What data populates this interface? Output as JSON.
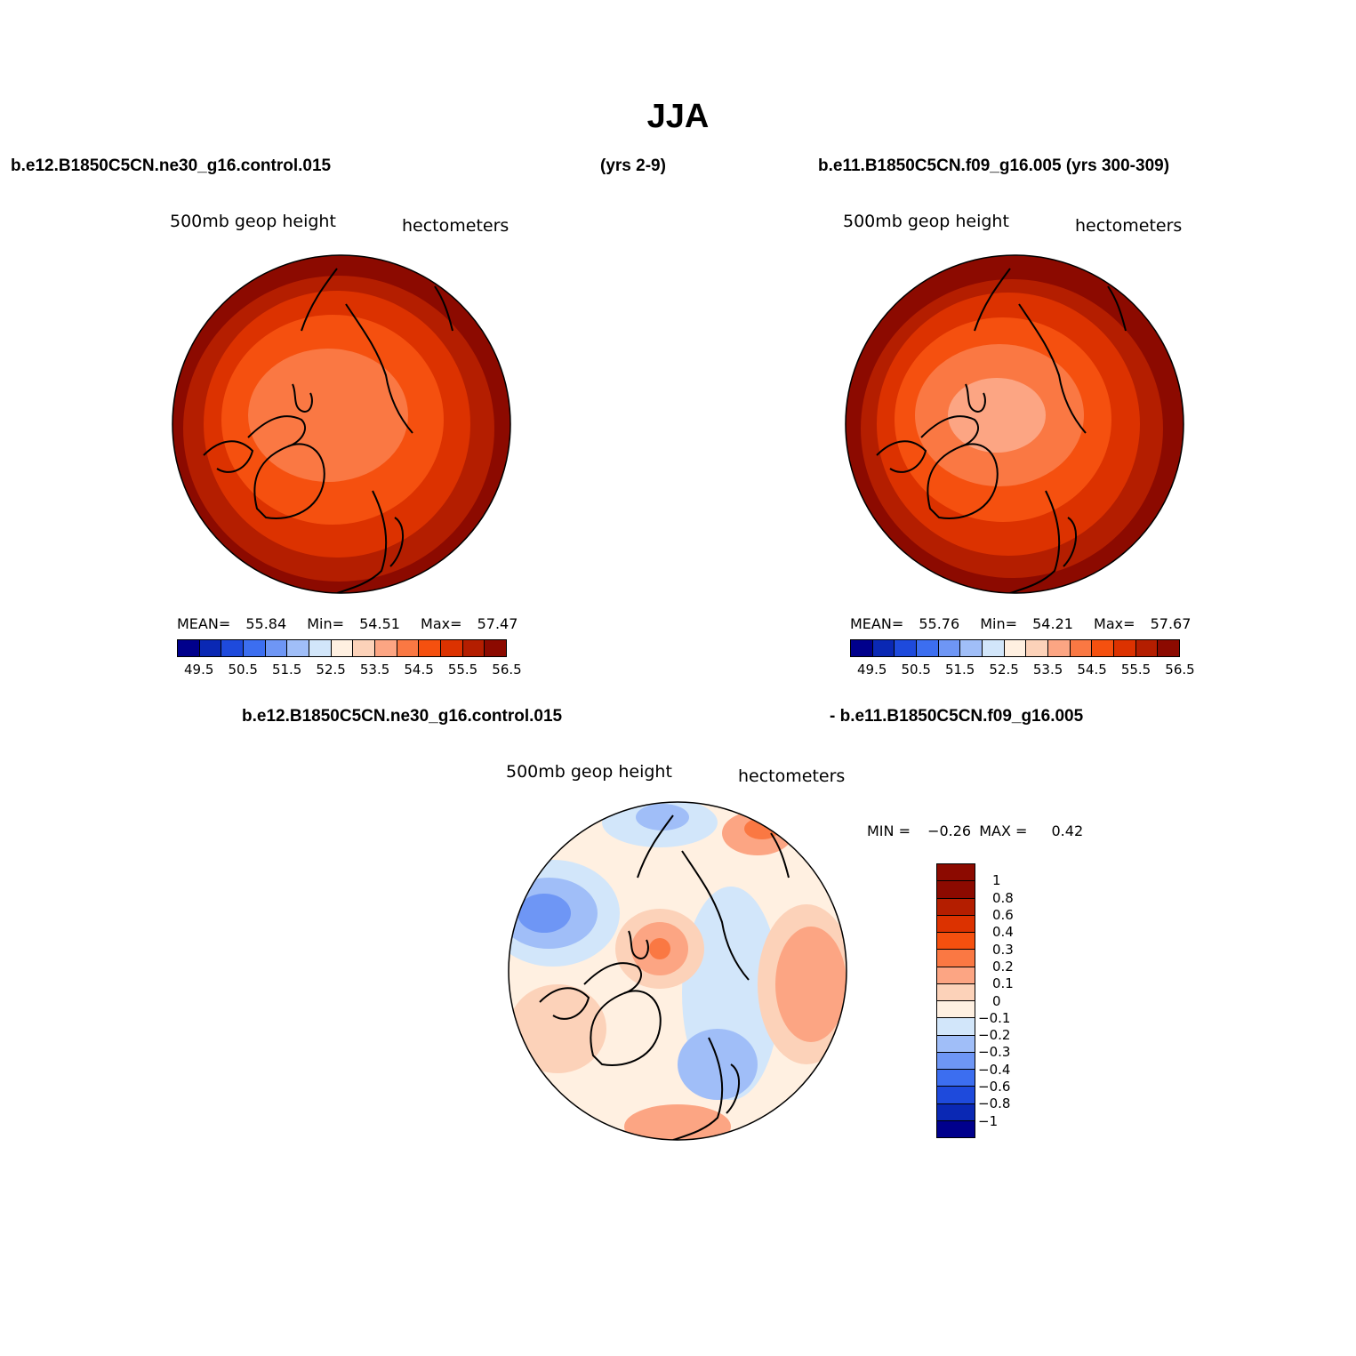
{
  "title": "JJA",
  "top_left_case": "b.e12.B1850C5CN.ne30_g16.control.015",
  "top_mid_years": "(yrs 2-9)",
  "top_right_case": "b.e11.B1850C5CN.f09_g16.005 (yrs 300-309)",
  "diff_case_a": "b.e12.B1850C5CN.ne30_g16.control.015",
  "diff_case_b": "- b.e11.B1850C5CN.f09_g16.005",
  "panels": {
    "left": {
      "var": "500mb geop height",
      "units": "hectometers",
      "mean_label": "MEAN=",
      "mean": "55.84",
      "min_label": "Min=",
      "min": "54.51",
      "max_label": "Max=",
      "max": "57.47"
    },
    "right": {
      "var": "500mb geop height",
      "units": "hectometers",
      "mean_label": "MEAN=",
      "mean": "55.76",
      "min_label": "Min=",
      "min": "54.21",
      "max_label": "Max=",
      "max": "57.67"
    },
    "diff": {
      "var": "500mb geop height",
      "units": "hectometers",
      "min_label": "MIN =",
      "min": "−0.26",
      "max_label": "MAX =",
      "max": "0.42"
    }
  },
  "chart_data": [
    {
      "type": "heatmap",
      "projection": "north polar stereographic",
      "field": "500mb geop height",
      "units": "hectometers",
      "mean": 55.84,
      "min": 54.51,
      "max": 57.47,
      "contour_levels": [
        49.5,
        50,
        50.5,
        51,
        51.5,
        52,
        52.5,
        53,
        53.5,
        54,
        54.5,
        55,
        55.5,
        56,
        56.5
      ],
      "colorbar_tick_labels": [
        "49.5",
        "50.5",
        "51.5",
        "52.5",
        "53.5",
        "54.5",
        "55.5",
        "56.5"
      ],
      "colors": [
        "#00008c",
        "#0a28b4",
        "#1e4adc",
        "#3c6ef0",
        "#6e96f5",
        "#a0bef8",
        "#d2e6fa",
        "#fff0e1",
        "#fcd2b9",
        "#fca583",
        "#fa7843",
        "#f5500f",
        "#dc3200",
        "#b41e00",
        "#8c0a00"
      ],
      "field_bands": [
        55.5,
        56.0,
        56.5,
        57.0,
        57.5
      ]
    },
    {
      "type": "heatmap",
      "projection": "north polar stereographic",
      "field": "500mb geop height",
      "units": "hectometers",
      "mean": 55.76,
      "min": 54.21,
      "max": 57.67,
      "contour_levels": [
        49.5,
        50,
        50.5,
        51,
        51.5,
        52,
        52.5,
        53,
        53.5,
        54,
        54.5,
        55,
        55.5,
        56,
        56.5
      ],
      "colorbar_tick_labels": [
        "49.5",
        "50.5",
        "51.5",
        "52.5",
        "53.5",
        "54.5",
        "55.5",
        "56.5"
      ],
      "colors": [
        "#00008c",
        "#0a28b4",
        "#1e4adc",
        "#3c6ef0",
        "#6e96f5",
        "#a0bef8",
        "#d2e6fa",
        "#fff0e1",
        "#fcd2b9",
        "#fca583",
        "#fa7843",
        "#f5500f",
        "#dc3200",
        "#b41e00",
        "#8c0a00"
      ],
      "field_bands": [
        54.5,
        55.0,
        55.5,
        56.0,
        56.5,
        57.0,
        57.5
      ]
    },
    {
      "type": "heatmap",
      "projection": "north polar stereographic",
      "field": "500mb geop height difference",
      "units": "hectometers",
      "min": -0.26,
      "max": 0.42,
      "contour_levels": [
        -1,
        -0.8,
        -0.6,
        -0.4,
        -0.3,
        -0.2,
        -0.1,
        0,
        0.1,
        0.2,
        0.3,
        0.4,
        0.6,
        0.8,
        1
      ],
      "colorbar_tick_labels": [
        "1",
        "0.8",
        "0.6",
        "0.4",
        "0.3",
        "0.2",
        "0.1",
        "0",
        "−0.1",
        "−0.2",
        "−0.3",
        "−0.4",
        "−0.6",
        "−0.8",
        "−1"
      ],
      "colors_top_to_bottom": [
        "#8c0a00",
        "#b41e00",
        "#dc3200",
        "#f5500f",
        "#fa7843",
        "#fca583",
        "#fcd2b9",
        "#fff0e1",
        "#d2e6fa",
        "#a0bef8",
        "#6e96f5",
        "#3c6ef0",
        "#1e4adc",
        "#0a28b4",
        "#00008c"
      ]
    }
  ]
}
